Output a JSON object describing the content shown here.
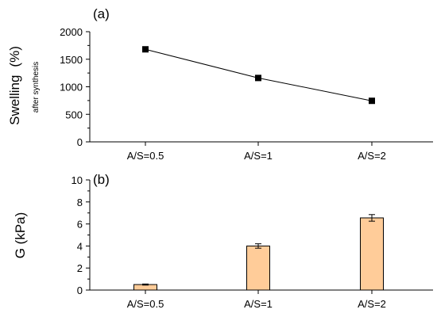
{
  "chart_data": [
    {
      "panel_label": "(a)",
      "type": "line",
      "categories": [
        "A/S=0.5",
        "A/S=1",
        "A/S=2"
      ],
      "series": [
        {
          "values": [
            1680,
            1160,
            745
          ],
          "marker": "square",
          "color": "#000000"
        }
      ],
      "ylabel": "Swelling",
      "ylabel_unit": "(%)",
      "ylabel_sub": "after synthesis",
      "ylim": [
        0,
        2000
      ],
      "yticks": [
        0,
        500,
        1000,
        1500,
        2000
      ],
      "grid": false,
      "legend": "none"
    },
    {
      "panel_label": "(b)",
      "type": "bar",
      "categories": [
        "A/S=0.5",
        "A/S=1",
        "A/S=2"
      ],
      "series": [
        {
          "values": [
            0.5,
            4.0,
            6.55
          ],
          "errors": [
            0.05,
            0.2,
            0.3
          ],
          "color": "#ffcc99"
        }
      ],
      "ylabel": "G (kPa)",
      "ylim": [
        0,
        10
      ],
      "yticks": [
        0,
        2,
        4,
        6,
        8,
        10
      ],
      "grid": false,
      "legend": "none"
    }
  ]
}
